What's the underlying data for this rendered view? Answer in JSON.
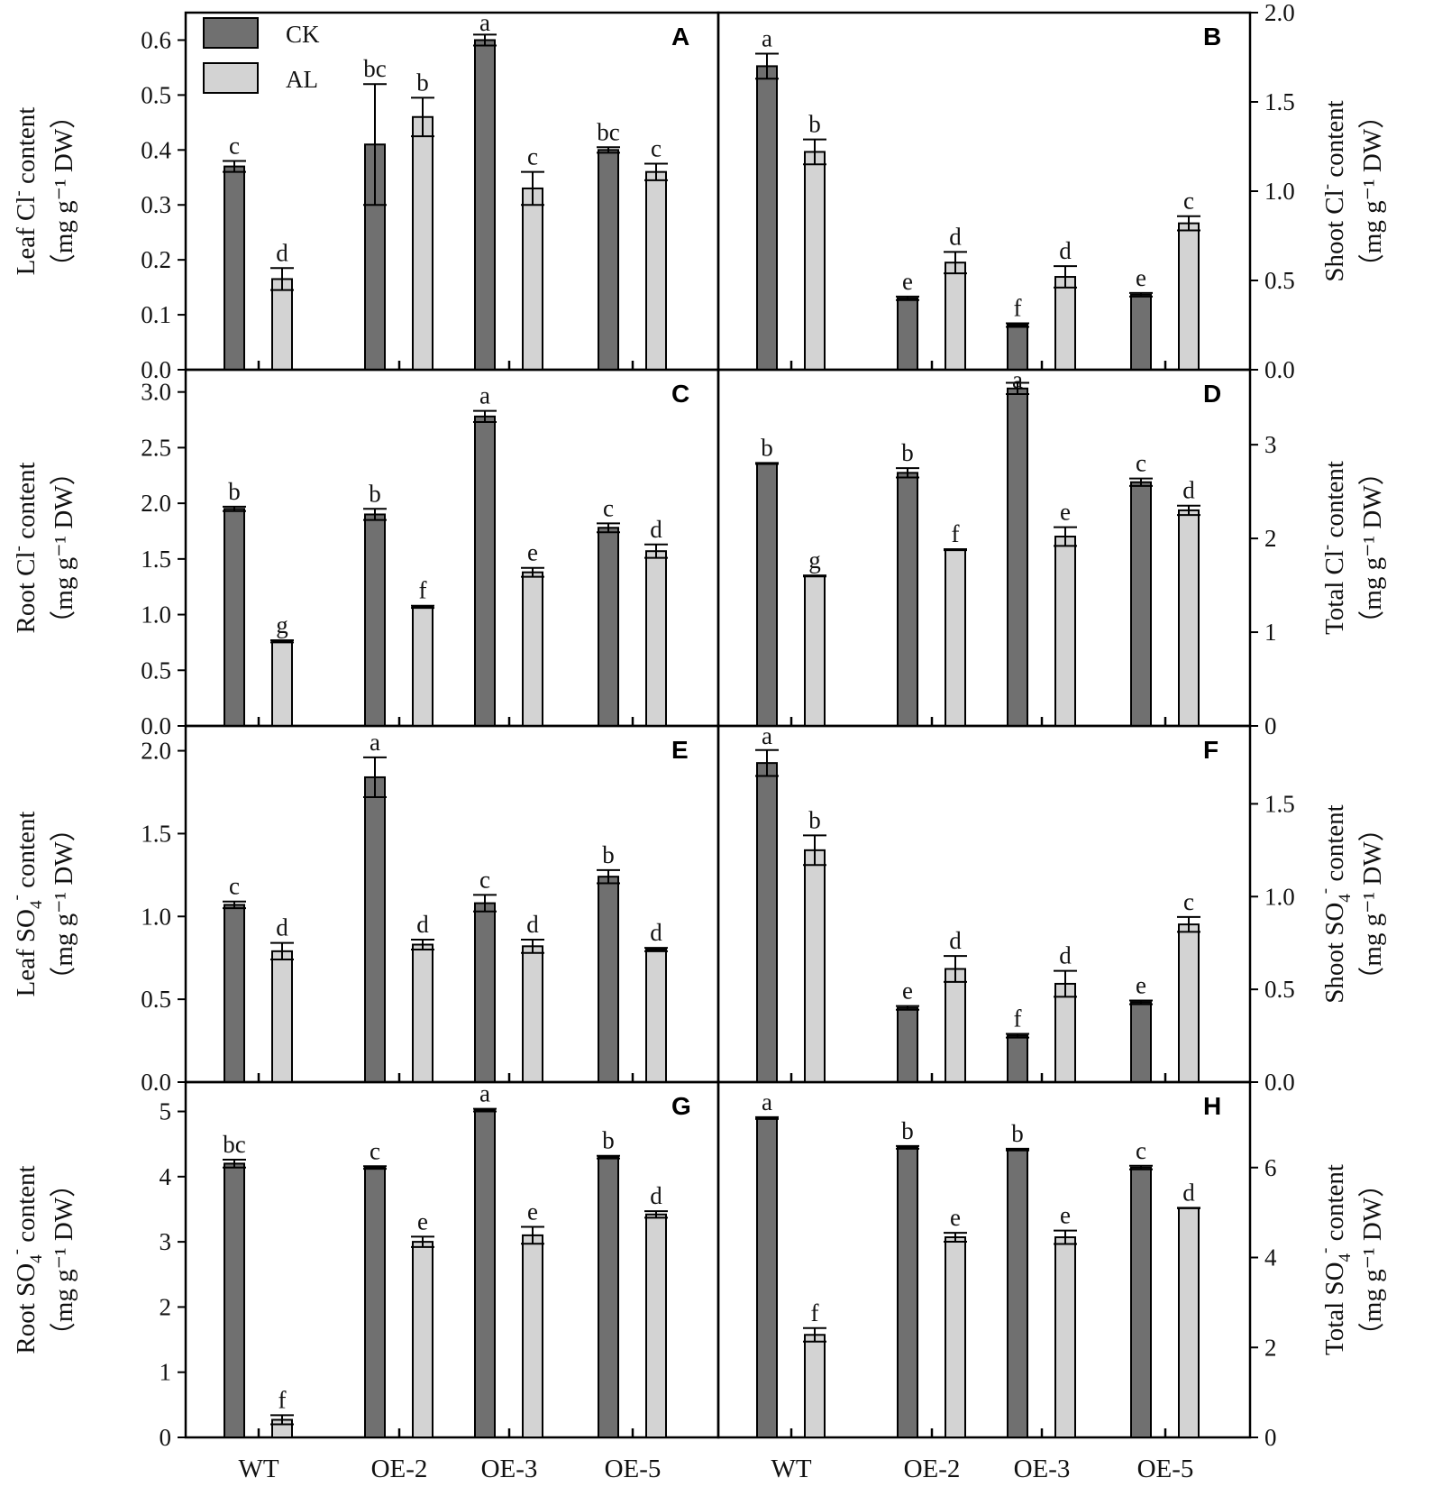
{
  "colors": {
    "ck": "#707070",
    "al": "#d3d3d3",
    "stroke": "#000000"
  },
  "legend": {
    "items": [
      {
        "label": "CK",
        "color": "#707070"
      },
      {
        "label": "AL",
        "color": "#d3d3d3"
      }
    ]
  },
  "chart_data": [
    {
      "type": "bar",
      "panel": "A",
      "ylabel_main": "Leaf Cl",
      "ylabel_sup": "-",
      "ylabel_tail": " content",
      "yunit": "（mg g⁻¹ DW）",
      "yaxis_side": "left",
      "ylim": [
        0,
        0.65
      ],
      "yticks": [
        0.0,
        0.1,
        0.2,
        0.3,
        0.4,
        0.5,
        0.6
      ],
      "yformat": 1,
      "categories": [
        "WT",
        "OE-2",
        "OE-3",
        "OE-5"
      ],
      "series": [
        {
          "name": "CK",
          "values": [
            0.37,
            0.41,
            0.6,
            0.4
          ],
          "errors": [
            0.01,
            0.11,
            0.01,
            0.005
          ],
          "letters": [
            "c",
            "bc",
            "a",
            "bc"
          ]
        },
        {
          "name": "AL",
          "values": [
            0.165,
            0.46,
            0.33,
            0.36
          ],
          "errors": [
            0.02,
            0.035,
            0.03,
            0.015
          ],
          "letters": [
            "d",
            "b",
            "c",
            "c"
          ]
        }
      ]
    },
    {
      "type": "bar",
      "panel": "B",
      "ylabel_main": "Shoot Cl",
      "ylabel_sup": "-",
      "ylabel_tail": " content",
      "yunit": "（mg g⁻¹ DW）",
      "yaxis_side": "right",
      "ylim": [
        0,
        2.0
      ],
      "yticks": [
        0.0,
        0.5,
        1.0,
        1.5,
        2.0
      ],
      "yformat": 1,
      "categories": [
        "WT",
        "OE-2",
        "OE-3",
        "OE-5"
      ],
      "series": [
        {
          "name": "CK",
          "values": [
            1.7,
            0.4,
            0.25,
            0.42
          ],
          "errors": [
            0.07,
            0.01,
            0.01,
            0.01
          ],
          "letters": [
            "a",
            "e",
            "f",
            "e"
          ]
        },
        {
          "name": "AL",
          "values": [
            1.22,
            0.6,
            0.52,
            0.82
          ],
          "errors": [
            0.07,
            0.06,
            0.06,
            0.04
          ],
          "letters": [
            "b",
            "d",
            "d",
            "c"
          ]
        }
      ]
    },
    {
      "type": "bar",
      "panel": "C",
      "ylabel_main": "Root Cl",
      "ylabel_sup": "-",
      "ylabel_tail": " content",
      "yunit": "（mg g⁻¹ DW）",
      "yaxis_side": "left",
      "ylim": [
        0,
        3.2
      ],
      "yticks": [
        0.0,
        0.5,
        1.0,
        1.5,
        2.0,
        2.5,
        3.0
      ],
      "yformat": 1,
      "categories": [
        "WT",
        "OE-2",
        "OE-3",
        "OE-5"
      ],
      "series": [
        {
          "name": "CK",
          "values": [
            1.95,
            1.9,
            2.78,
            1.78
          ],
          "errors": [
            0.02,
            0.05,
            0.05,
            0.04
          ],
          "letters": [
            "b",
            "b",
            "a",
            "c"
          ]
        },
        {
          "name": "AL",
          "values": [
            0.76,
            1.07,
            1.38,
            1.57
          ],
          "errors": [
            0.01,
            0.01,
            0.04,
            0.06
          ],
          "letters": [
            "g",
            "f",
            "e",
            "d"
          ]
        }
      ]
    },
    {
      "type": "bar",
      "panel": "D",
      "ylabel_main": "Total Cl",
      "ylabel_sup": "-",
      "ylabel_tail": " content",
      "yunit": "（mg g⁻¹ DW）",
      "yaxis_side": "right",
      "ylim": [
        0,
        3.8
      ],
      "yticks": [
        0,
        1,
        2,
        3
      ],
      "yformat": 0,
      "categories": [
        "WT",
        "OE-2",
        "OE-3",
        "OE-5"
      ],
      "series": [
        {
          "name": "CK",
          "values": [
            2.8,
            2.7,
            3.6,
            2.6
          ],
          "errors": [
            0.005,
            0.05,
            0.06,
            0.04
          ],
          "letters": [
            "b",
            "b",
            "a",
            "c"
          ]
        },
        {
          "name": "AL",
          "values": [
            1.6,
            1.88,
            2.02,
            2.3
          ],
          "errors": [
            0.005,
            0.005,
            0.1,
            0.05
          ],
          "letters": [
            "g",
            "f",
            "e",
            "d"
          ]
        }
      ]
    },
    {
      "type": "bar",
      "panel": "E",
      "ylabel_main": "Leaf SO",
      "ylabel_sub": "4",
      "ylabel_sup": "-",
      "ylabel_tail": " content",
      "yunit": "（mg g⁻¹ DW）",
      "yaxis_side": "left",
      "ylim": [
        0,
        2.15
      ],
      "yticks": [
        0.0,
        0.5,
        1.0,
        1.5,
        2.0
      ],
      "yformat": 1,
      "categories": [
        "WT",
        "OE-2",
        "OE-3",
        "OE-5"
      ],
      "series": [
        {
          "name": "CK",
          "values": [
            1.07,
            1.84,
            1.08,
            1.24
          ],
          "errors": [
            0.02,
            0.12,
            0.05,
            0.04
          ],
          "letters": [
            "c",
            "a",
            "c",
            "b"
          ]
        },
        {
          "name": "AL",
          "values": [
            0.79,
            0.83,
            0.82,
            0.8
          ],
          "errors": [
            0.05,
            0.03,
            0.04,
            0.01
          ],
          "letters": [
            "d",
            "d",
            "d",
            "d"
          ]
        }
      ]
    },
    {
      "type": "bar",
      "panel": "F",
      "ylabel_main": "Shoot SO",
      "ylabel_sub": "4",
      "ylabel_sup": "-",
      "ylabel_tail": " content",
      "yunit": "（mg g⁻¹ DW）",
      "yaxis_side": "right",
      "ylim": [
        0,
        1.92
      ],
      "yticks": [
        0.0,
        0.5,
        1.0,
        1.5
      ],
      "yformat": 1,
      "categories": [
        "WT",
        "OE-2",
        "OE-3",
        "OE-5"
      ],
      "series": [
        {
          "name": "CK",
          "values": [
            1.72,
            0.4,
            0.25,
            0.43
          ],
          "errors": [
            0.07,
            0.01,
            0.01,
            0.01
          ],
          "letters": [
            "a",
            "e",
            "f",
            "e"
          ]
        },
        {
          "name": "AL",
          "values": [
            1.25,
            0.61,
            0.53,
            0.85
          ],
          "errors": [
            0.08,
            0.07,
            0.07,
            0.04
          ],
          "letters": [
            "b",
            "d",
            "d",
            "c"
          ]
        }
      ]
    },
    {
      "type": "bar",
      "panel": "G",
      "ylabel_main": "Root SO",
      "ylabel_sub": "4",
      "ylabel_sup": "-",
      "ylabel_tail": " content",
      "yunit": "（mg g⁻¹ DW）",
      "yaxis_side": "left",
      "ylim": [
        0,
        5.45
      ],
      "yticks": [
        0,
        1,
        2,
        3,
        4,
        5
      ],
      "yformat": 0,
      "categories": [
        "WT",
        "OE-2",
        "OE-3",
        "OE-5"
      ],
      "series": [
        {
          "name": "CK",
          "values": [
            4.2,
            4.14,
            5.02,
            4.3
          ],
          "errors": [
            0.06,
            0.02,
            0.02,
            0.02
          ],
          "letters": [
            "bc",
            "c",
            "a",
            "b"
          ]
        },
        {
          "name": "AL",
          "values": [
            0.27,
            3.0,
            3.1,
            3.42
          ],
          "errors": [
            0.07,
            0.08,
            0.13,
            0.05
          ],
          "letters": [
            "f",
            "e",
            "e",
            "d"
          ]
        }
      ]
    },
    {
      "type": "bar",
      "panel": "H",
      "ylabel_main": "Total SO",
      "ylabel_sub": "4",
      "ylabel_sup": "-",
      "ylabel_tail": " content",
      "yunit": "（mg g⁻¹ DW）",
      "yaxis_side": "right",
      "ylim": [
        0,
        7.9
      ],
      "yticks": [
        0,
        2,
        4,
        6
      ],
      "yformat": 0,
      "categories": [
        "WT",
        "OE-2",
        "OE-3",
        "OE-5"
      ],
      "series": [
        {
          "name": "CK",
          "values": [
            7.1,
            6.45,
            6.4,
            6.0
          ],
          "errors": [
            0.02,
            0.03,
            0.02,
            0.04
          ],
          "letters": [
            "a",
            "b",
            "b",
            "c"
          ]
        },
        {
          "name": "AL",
          "values": [
            2.28,
            4.45,
            4.45,
            5.1
          ],
          "errors": [
            0.15,
            0.1,
            0.15,
            0.005
          ],
          "letters": [
            "f",
            "e",
            "e",
            "d"
          ]
        }
      ]
    }
  ]
}
